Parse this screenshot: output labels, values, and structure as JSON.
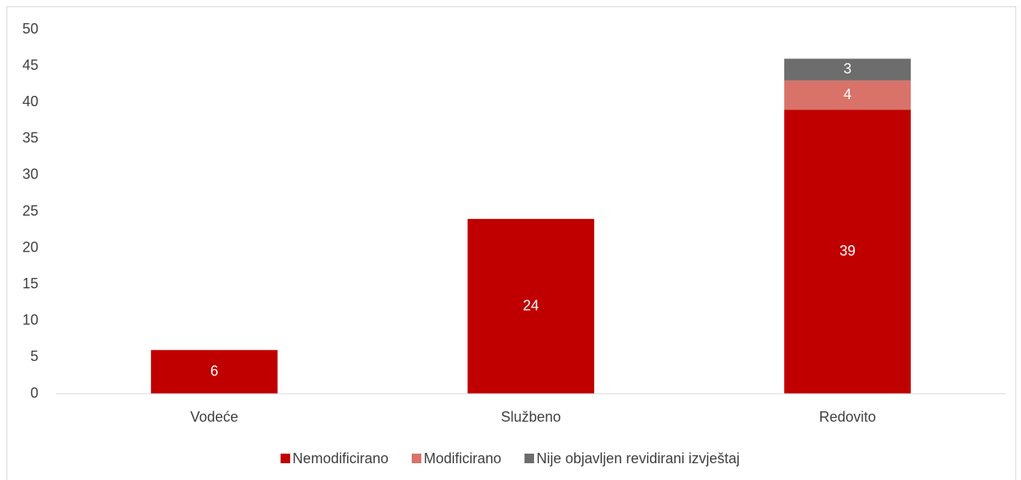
{
  "chart_data": {
    "type": "stacked_bar",
    "categories": [
      "Vodeće",
      "Službeno",
      "Redovito"
    ],
    "series": [
      {
        "name": "Nemodificirano",
        "color": "#c00000",
        "values": [
          6,
          24,
          39
        ]
      },
      {
        "name": "Modificirano",
        "color": "#d9736a",
        "values": [
          null,
          null,
          4
        ]
      },
      {
        "name": "Nije objavljen revidirani izvještaj",
        "color": "#6d6d6d",
        "values": [
          null,
          null,
          3
        ]
      }
    ],
    "ylim": [
      0,
      50
    ],
    "yticks": [
      0,
      5,
      10,
      15,
      20,
      25,
      30,
      35,
      40,
      45,
      50
    ],
    "grid": false,
    "legend": "bottom"
  }
}
